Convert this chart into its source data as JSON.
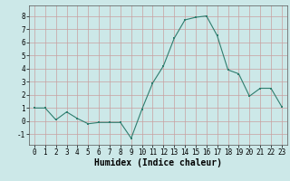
{
  "x": [
    0,
    1,
    2,
    3,
    4,
    5,
    6,
    7,
    8,
    9,
    10,
    11,
    12,
    13,
    14,
    15,
    16,
    17,
    18,
    19,
    20,
    21,
    22,
    23
  ],
  "y": [
    1.0,
    1.0,
    0.1,
    0.7,
    0.2,
    -0.2,
    -0.1,
    -0.1,
    -0.1,
    -1.3,
    0.9,
    2.9,
    4.2,
    6.3,
    7.7,
    7.9,
    8.0,
    6.5,
    3.9,
    3.6,
    1.9,
    2.5,
    2.5,
    1.1
  ],
  "line_color": "#2e7d6e",
  "marker": "s",
  "marker_size": 1.8,
  "linewidth": 0.8,
  "bg_color": "#cce8e8",
  "grid_color": "#c8a0a0",
  "xlabel": "Humidex (Indice chaleur)",
  "xlabel_fontsize": 7,
  "ylim": [
    -1.8,
    8.8
  ],
  "xlim": [
    -0.5,
    23.5
  ],
  "yticks": [
    -1,
    0,
    1,
    2,
    3,
    4,
    5,
    6,
    7,
    8
  ],
  "xticks": [
    0,
    1,
    2,
    3,
    4,
    5,
    6,
    7,
    8,
    9,
    10,
    11,
    12,
    13,
    14,
    15,
    16,
    17,
    18,
    19,
    20,
    21,
    22,
    23
  ],
  "tick_fontsize": 5.5
}
